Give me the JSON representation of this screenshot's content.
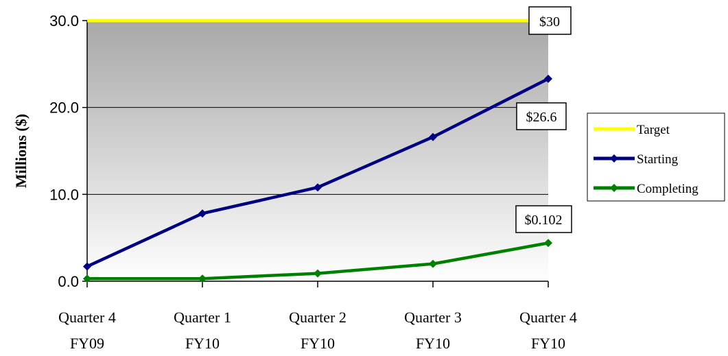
{
  "chart_data": {
    "type": "line",
    "ylabel": "Millions ($)",
    "ylim": [
      0,
      30
    ],
    "yticks": [
      "0.0",
      "10.0",
      "20.0",
      "30.0"
    ],
    "ytick_values": [
      0,
      10,
      20,
      30
    ],
    "categories": [
      [
        "Quarter 4",
        "FY09"
      ],
      [
        "Quarter 1",
        "FY10"
      ],
      [
        "Quarter 2",
        "FY10"
      ],
      [
        "Quarter 3",
        "FY10"
      ],
      [
        "Quarter 4",
        "FY10"
      ]
    ],
    "series": [
      {
        "name": "Target",
        "values": [
          30,
          30,
          30,
          30,
          30
        ],
        "color": "#ffff00",
        "marker": "none"
      },
      {
        "name": "Starting",
        "values": [
          1.7,
          7.8,
          10.8,
          16.6,
          23.3
        ],
        "color": "#000080",
        "marker": "diamond"
      },
      {
        "name": "Completing",
        "values": [
          0.3,
          0.3,
          0.9,
          2.0,
          4.4
        ],
        "color": "#008000",
        "marker": "diamond"
      }
    ],
    "annotations": [
      "$30",
      "$26.6",
      "$0.102"
    ],
    "grid": true,
    "legend_position": "right",
    "background_gradient": [
      "#a8a8a8",
      "#ffffff"
    ]
  }
}
